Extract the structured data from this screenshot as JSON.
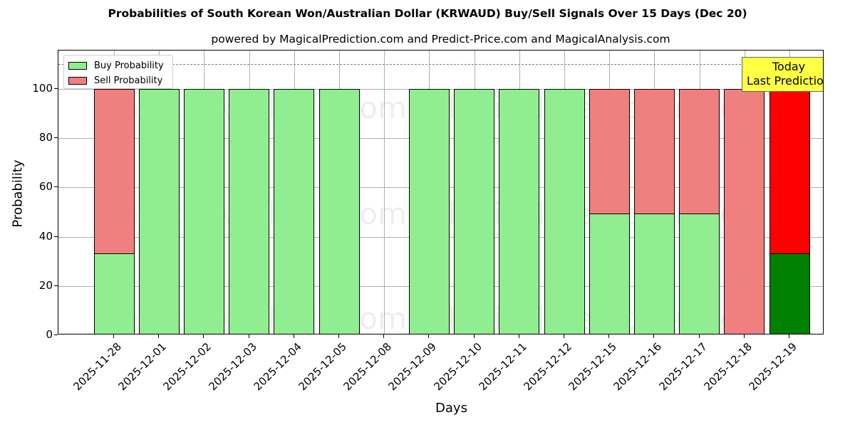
{
  "chart_data": {
    "type": "bar",
    "stacked": true,
    "title": "Probabilities of South Korean Won/Australian Dollar (KRWAUD) Buy/Sell Signals Over 15 Days (Dec 20)",
    "subtitle": "powered by MagicalPrediction.com and Predict-Price.com and MagicalAnalysis.com",
    "xlabel": "Days",
    "ylabel": "Probability",
    "ylim": [
      0,
      115
    ],
    "yticks": [
      0,
      20,
      40,
      60,
      80,
      100
    ],
    "grid": true,
    "legend_position": "upper left",
    "reference_line": {
      "y": 110,
      "style": "dashed",
      "color": "#7f7f7f"
    },
    "categories": [
      "2025-11-28",
      "2025-12-01",
      "2025-12-02",
      "2025-12-03",
      "2025-12-04",
      "2025-12-05",
      "2025-12-08",
      "2025-12-09",
      "2025-12-10",
      "2025-12-11",
      "2025-12-12",
      "2025-12-15",
      "2025-12-16",
      "2025-12-17",
      "2025-12-18",
      "2025-12-19"
    ],
    "series": [
      {
        "name": "Buy Probability",
        "color": "#90ee90",
        "values": [
          33.3,
          100,
          100,
          100,
          100,
          100,
          null,
          100,
          100,
          100,
          100,
          49.3,
          49.3,
          49.3,
          0,
          33.3
        ]
      },
      {
        "name": "Sell Probability",
        "color": "#f08080",
        "values": [
          66.7,
          0,
          0,
          0,
          0,
          0,
          null,
          0,
          0,
          0,
          0,
          50.7,
          50.7,
          50.7,
          100,
          66.7
        ]
      }
    ],
    "highlight": {
      "index": 15,
      "buy_color": "#008000",
      "sell_color": "#ff0000"
    },
    "annotation": {
      "line1": "Today",
      "line2": "Last Prediction",
      "background": "#ffff44"
    },
    "watermarks": [
      "MagicalAnalysis.com",
      "MagicalPrediction.com"
    ]
  }
}
